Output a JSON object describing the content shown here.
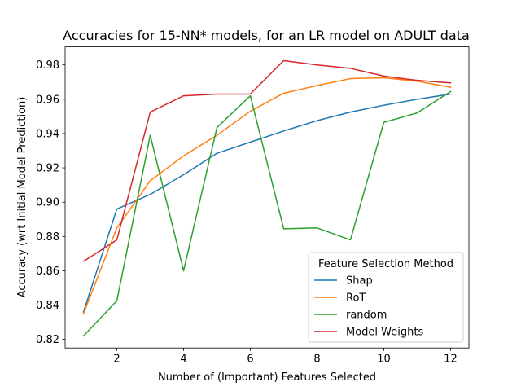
{
  "chart_data": {
    "type": "line",
    "title": "Accuracies for 15-NN* models, for an LR model on ADULT data",
    "xlabel": "Number of (Important) Features Selected",
    "ylabel": "Accuracy (wrt Initial Model Prediction)",
    "x": [
      1,
      2,
      3,
      4,
      5,
      6,
      7,
      8,
      9,
      10,
      11,
      12
    ],
    "xlim": [
      0.45,
      12.55
    ],
    "ylim": [
      0.815,
      0.9905
    ],
    "xticks": [
      2,
      4,
      6,
      8,
      10,
      12
    ],
    "yticks": [
      0.82,
      0.84,
      0.86,
      0.88,
      0.9,
      0.92,
      0.94,
      0.96,
      0.98
    ],
    "xtick_labels": [
      "2",
      "4",
      "6",
      "8",
      "10",
      "12"
    ],
    "ytick_labels": [
      "0.82",
      "0.84",
      "0.86",
      "0.88",
      "0.90",
      "0.92",
      "0.94",
      "0.96",
      "0.98"
    ],
    "grid": false,
    "legend": {
      "title": "Feature Selection Method",
      "placement": "lower right"
    },
    "series": [
      {
        "name": "Shap",
        "color": "#1f77b4",
        "values": [
          0.836,
          0.896,
          0.9045,
          0.916,
          0.9285,
          0.935,
          0.9415,
          0.9475,
          0.9525,
          0.9565,
          0.96,
          0.963
        ]
      },
      {
        "name": "RoT",
        "color": "#ff7f0e",
        "values": [
          0.835,
          0.885,
          0.9125,
          0.927,
          0.939,
          0.953,
          0.9635,
          0.968,
          0.972,
          0.9725,
          0.9705,
          0.967
        ]
      },
      {
        "name": "random",
        "color": "#2ca02c",
        "values": [
          0.822,
          0.8425,
          0.939,
          0.86,
          0.9435,
          0.962,
          0.8845,
          0.885,
          0.878,
          0.9465,
          0.952,
          0.9645
        ]
      },
      {
        "name": "Model Weights",
        "color": "#d62728",
        "values": [
          0.8655,
          0.878,
          0.9525,
          0.962,
          0.963,
          0.963,
          0.9825,
          0.98,
          0.978,
          0.9735,
          0.971,
          0.9695
        ]
      }
    ]
  }
}
